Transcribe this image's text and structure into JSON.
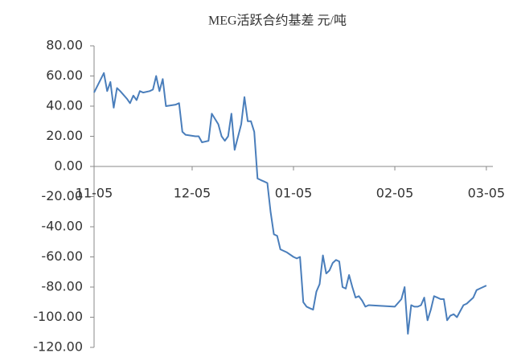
{
  "chart_data": {
    "type": "line",
    "title": "MEG活跃合约基差 元/吨",
    "x": [
      "11-05",
      "11-08",
      "11-09",
      "11-10",
      "11-11",
      "11-12",
      "11-13",
      "11-15",
      "11-16",
      "11-17",
      "11-18",
      "11-19",
      "11-20",
      "11-22",
      "11-23",
      "11-24",
      "11-25",
      "11-26",
      "11-27",
      "11-30",
      "12-01",
      "12-02",
      "12-03",
      "12-06",
      "12-07",
      "12-08",
      "12-10",
      "12-11",
      "12-13",
      "12-14",
      "12-15",
      "12-16",
      "12-17",
      "12-18",
      "12-20",
      "12-21",
      "12-22",
      "12-23",
      "12-24",
      "12-25",
      "12-26",
      "12-27",
      "12-28",
      "12-29",
      "12-30",
      "12-31",
      "01-01",
      "01-03",
      "01-05",
      "01-06",
      "01-07",
      "01-08",
      "01-09",
      "01-10",
      "01-11",
      "01-12",
      "01-13",
      "01-14",
      "01-15",
      "01-16",
      "01-17",
      "01-18",
      "01-19",
      "01-20",
      "01-21",
      "01-22",
      "01-23",
      "01-24",
      "01-25",
      "01-26",
      "01-27",
      "01-28",
      "02-05",
      "02-07",
      "02-08",
      "02-09",
      "02-10",
      "02-11",
      "02-12",
      "02-13",
      "02-14",
      "02-15",
      "02-16",
      "02-17",
      "02-18",
      "02-19",
      "02-20",
      "02-21",
      "02-22",
      "02-23",
      "02-24",
      "02-25",
      "02-26",
      "02-27",
      "02-28",
      "03-01",
      "03-02",
      "03-03",
      "03-05"
    ],
    "series": [
      {
        "name": "MEG活跃合约基差",
        "color": "#4a7ebb",
        "values": [
          49,
          62,
          50,
          56,
          39,
          52,
          50,
          45,
          42,
          47,
          44,
          50,
          49,
          50,
          51,
          60,
          50,
          58,
          40,
          41,
          42,
          23,
          21,
          20,
          20,
          16,
          17,
          35,
          28,
          20,
          17,
          20,
          35,
          11,
          28,
          46,
          30,
          30,
          23,
          -8,
          -9,
          -10,
          -11,
          -30,
          -45,
          -46,
          -55,
          -57,
          -60,
          -61,
          -60,
          -90,
          -93,
          -94,
          -95,
          -83,
          -78,
          -59,
          -71,
          -69,
          -64,
          -62,
          -63,
          -80,
          -81,
          -72,
          -80,
          -87,
          -86,
          -89,
          -93,
          -92,
          -93,
          -88,
          -80,
          -111,
          -92,
          -93,
          -93,
          -92,
          -87,
          -102,
          -95,
          -86,
          -87,
          -88,
          -88,
          -102,
          -99,
          -98,
          -100,
          -96,
          -92,
          -91,
          -89,
          -87,
          -82,
          -81,
          -79
        ]
      }
    ],
    "xlim": [
      "11-05",
      "03-07"
    ],
    "xticks": [
      "11-05",
      "12-05",
      "01-05",
      "02-05",
      "03-05"
    ],
    "ylim": [
      -120,
      80
    ],
    "yticks": [
      {
        "value": -120,
        "label": "-120.00"
      },
      {
        "value": -100,
        "label": "-100.00"
      },
      {
        "value": -80,
        "label": "-80.00"
      },
      {
        "value": -60,
        "label": "-60.00"
      },
      {
        "value": -40,
        "label": "-40.00"
      },
      {
        "value": -20,
        "label": "-20.00"
      },
      {
        "value": 0,
        "label": "0.00"
      },
      {
        "value": 20,
        "label": "20.00"
      },
      {
        "value": 40,
        "label": "40.00"
      },
      {
        "value": 60,
        "label": "60.00"
      },
      {
        "value": 80,
        "label": "80.00"
      }
    ],
    "grid": false
  }
}
